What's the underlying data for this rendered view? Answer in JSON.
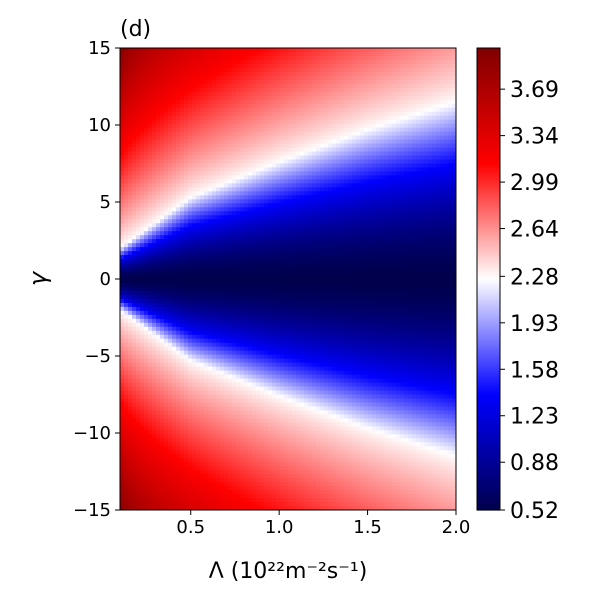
{
  "chart_data": {
    "type": "heatmap",
    "panel_label": "(d)",
    "xlabel": "Λ (10²²m⁻²s⁻¹)",
    "ylabel": "γ",
    "xlim": [
      0.1,
      2.0
    ],
    "ylim": [
      -15,
      15
    ],
    "x_ticks": [
      {
        "value": 0.5,
        "label": "0.5"
      },
      {
        "value": 1.0,
        "label": "1.0"
      },
      {
        "value": 1.5,
        "label": "1.5"
      },
      {
        "value": 2.0,
        "label": "2.0"
      }
    ],
    "y_ticks": [
      {
        "value": -15,
        "label": "−15"
      },
      {
        "value": -10,
        "label": "−10"
      },
      {
        "value": -5,
        "label": "−5"
      },
      {
        "value": 0,
        "label": "0"
      },
      {
        "value": 5,
        "label": "5"
      },
      {
        "value": 10,
        "label": "10"
      },
      {
        "value": 15,
        "label": "15"
      }
    ],
    "colormap": "seismic",
    "colorbar": {
      "vmin": 0.52,
      "vmax": 4.0,
      "ticks": [
        {
          "value": 0.52,
          "label": "0.52"
        },
        {
          "value": 0.88,
          "label": "0.88"
        },
        {
          "value": 1.23,
          "label": "1.23"
        },
        {
          "value": 1.58,
          "label": "1.58"
        },
        {
          "value": 1.93,
          "label": "1.93"
        },
        {
          "value": 2.28,
          "label": "2.28"
        },
        {
          "value": 2.64,
          "label": "2.64"
        },
        {
          "value": 2.99,
          "label": "2.99"
        },
        {
          "value": 3.34,
          "label": "3.34"
        },
        {
          "value": 3.69,
          "label": "3.69"
        }
      ]
    },
    "field_samples": {
      "x": [
        0.1,
        0.5,
        1.0,
        1.5,
        2.0
      ],
      "contour_2_28_gamma": [
        2.0,
        5.3,
        7.6,
        9.7,
        11.5
      ],
      "value_at_gamma_0": 0.52,
      "value_at_corner_x0_1_gamma_15": 4.0,
      "value_at_x2_0_gamma_15": 2.6
    },
    "grid": false
  }
}
